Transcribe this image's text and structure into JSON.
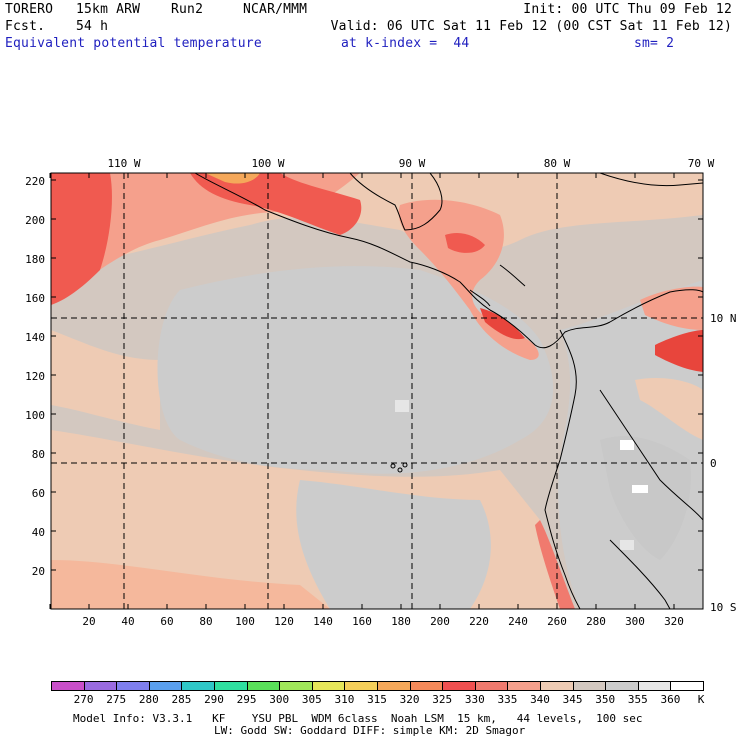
{
  "header": {
    "model": "TORERO",
    "resolution": "15km ARW",
    "run": "Run2",
    "org": "NCAR/MMM",
    "init": "Init: 00 UTC Thu 09 Feb 12",
    "fcst_label": "Fcst.",
    "fcst_value": "54 h",
    "valid": "Valid: 06 UTC Sat 11 Feb 12 (00 CST Sat 11 Feb 12)",
    "field": "Equivalent potential temperature",
    "level": "at k-index =  44",
    "smoothing": "sm= 2"
  },
  "map": {
    "lon_labels": [
      "110 W",
      "100 W",
      "90 W",
      "80 W",
      "70 W"
    ],
    "lat_labels": [
      "10 N",
      "0",
      "10 S"
    ],
    "y_ticks": [
      "220",
      "200",
      "180",
      "160",
      "140",
      "120",
      "100",
      "80",
      "60",
      "40",
      "20"
    ],
    "x_ticks": [
      "20",
      "40",
      "60",
      "80",
      "100",
      "120",
      "140",
      "160",
      "180",
      "200",
      "220",
      "240",
      "260",
      "280",
      "300",
      "320"
    ]
  },
  "colorbar": {
    "unit": "K",
    "levels": [
      "270",
      "275",
      "280",
      "285",
      "290",
      "295",
      "300",
      "305",
      "310",
      "315",
      "320",
      "325",
      "330",
      "335",
      "340",
      "345",
      "350",
      "355",
      "360"
    ],
    "colors": [
      "#c94fc9",
      "#9a6be0",
      "#7f7fee",
      "#5a9fee",
      "#2fc7c7",
      "#2fe0a0",
      "#5ae05a",
      "#a0e65a",
      "#e6e65a",
      "#f5cf5a",
      "#f5a85a",
      "#f58a5a",
      "#f05050",
      "#f07a6e",
      "#f5a08c",
      "#eecbb4",
      "#d3c8c0",
      "#cccccc",
      "#e6e6e6",
      "#ffffff"
    ]
  },
  "footer": {
    "line1": "Model Info: V3.3.1   KF    YSU PBL  WDM 6class  Noah LSM  15 km,   44 levels,  100 sec",
    "line2": "LW: Godd SW: Goddard DIFF: simple KM: 2D Smagor"
  }
}
